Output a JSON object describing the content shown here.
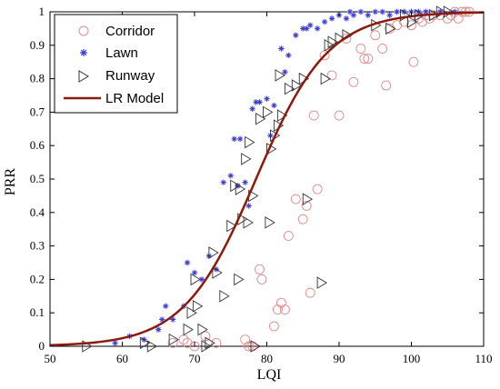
{
  "chart_data": {
    "type": "scatter",
    "xlabel": "LQI",
    "ylabel": "PRR",
    "xlim": [
      50,
      110
    ],
    "ylim": [
      0,
      1
    ],
    "x_ticks": [
      "50",
      "60",
      "70",
      "80",
      "90",
      "100",
      "110"
    ],
    "y_ticks": [
      "0",
      "0.1",
      "0.2",
      "0.3",
      "0.4",
      "0.5",
      "0.6",
      "0.7",
      "0.8",
      "0.9",
      "1"
    ],
    "grid": false,
    "legend_position": "top-left",
    "legend": [
      "Corridor",
      "Lawn",
      "Runway",
      "LR Model"
    ],
    "series": [
      {
        "name": "Corridor",
        "marker": "circle",
        "color": "#e08a8a",
        "points": [
          [
            67,
            0.01
          ],
          [
            68.5,
            0.02
          ],
          [
            69,
            0.01
          ],
          [
            70,
            0.0
          ],
          [
            71.5,
            0.03
          ],
          [
            73,
            0.01
          ],
          [
            77,
            0.02
          ],
          [
            77.5,
            0.0
          ],
          [
            78,
            0.0
          ],
          [
            79,
            0.23
          ],
          [
            79.3,
            0.2
          ],
          [
            81,
            0.06
          ],
          [
            81.5,
            0.11
          ],
          [
            82,
            0.13
          ],
          [
            82.5,
            0.11
          ],
          [
            83,
            0.33
          ],
          [
            84,
            0.44
          ],
          [
            85,
            0.38
          ],
          [
            85.5,
            0.42
          ],
          [
            86,
            0.16
          ],
          [
            86.5,
            0.69
          ],
          [
            87,
            0.47
          ],
          [
            88,
            0.87
          ],
          [
            89,
            0.81
          ],
          [
            90,
            0.69
          ],
          [
            91,
            0.92
          ],
          [
            92,
            0.79
          ],
          [
            93,
            0.89
          ],
          [
            93.5,
            0.86
          ],
          [
            94,
            0.86
          ],
          [
            95,
            0.93
          ],
          [
            96,
            0.89
          ],
          [
            96.5,
            0.78
          ],
          [
            97,
            0.95
          ],
          [
            98,
            0.96
          ],
          [
            99,
            0.97
          ],
          [
            100,
            0.96
          ],
          [
            100.3,
            0.85
          ],
          [
            101,
            0.98
          ],
          [
            101.5,
            0.97
          ],
          [
            102,
            0.99
          ],
          [
            102.5,
            0.98
          ],
          [
            103,
            0.99
          ],
          [
            104,
            0.99
          ],
          [
            105,
            0.98
          ],
          [
            105.5,
            0.99
          ],
          [
            106,
            1.0
          ],
          [
            106.5,
            0.98
          ],
          [
            107,
            1.0
          ],
          [
            107.5,
            1.0
          ],
          [
            108,
            1.0
          ]
        ]
      },
      {
        "name": "Lawn",
        "marker": "star",
        "color": "#3b3bd6",
        "points": [
          [
            59,
            0.01
          ],
          [
            61,
            0.03
          ],
          [
            63,
            0.02
          ],
          [
            65,
            0.05
          ],
          [
            65.5,
            0.08
          ],
          [
            66,
            0.12
          ],
          [
            67,
            0.08
          ],
          [
            68.5,
            0.12
          ],
          [
            69,
            0.25
          ],
          [
            70,
            0.22
          ],
          [
            71,
            0.2
          ],
          [
            72,
            0.27
          ],
          [
            73,
            0.23
          ],
          [
            74,
            0.49
          ],
          [
            75,
            0.51
          ],
          [
            75.5,
            0.62
          ],
          [
            76,
            0.48
          ],
          [
            76.3,
            0.62
          ],
          [
            77,
            0.49
          ],
          [
            77.5,
            0.42
          ],
          [
            78,
            0.71
          ],
          [
            78.5,
            0.73
          ],
          [
            79,
            0.73
          ],
          [
            80,
            0.74
          ],
          [
            80.5,
            0.63
          ],
          [
            81,
            0.72
          ],
          [
            82,
            0.89
          ],
          [
            82.5,
            0.82
          ],
          [
            83,
            0.87
          ],
          [
            84,
            0.93
          ],
          [
            85,
            0.95
          ],
          [
            85.5,
            0.95
          ],
          [
            86,
            0.96
          ],
          [
            87,
            0.95
          ],
          [
            88,
            0.97
          ],
          [
            89,
            0.98
          ],
          [
            90,
            0.99
          ],
          [
            91,
            0.98
          ],
          [
            91.5,
            1.0
          ],
          [
            92,
            0.99
          ],
          [
            93,
            1.0
          ],
          [
            94,
            0.99
          ],
          [
            95,
            1.0
          ],
          [
            96,
            1.0
          ],
          [
            97,
            0.99
          ],
          [
            98,
            1.0
          ],
          [
            99,
            1.0
          ],
          [
            100,
            1.0
          ],
          [
            101,
            1.0
          ],
          [
            102,
            1.0
          ],
          [
            104,
            1.0
          ],
          [
            106,
            1.0
          ]
        ]
      },
      {
        "name": "Runway",
        "marker": "triangle-right",
        "color": "#333333",
        "points": [
          [
            55,
            0.0
          ],
          [
            63,
            0.01
          ],
          [
            64,
            0.0
          ],
          [
            67,
            0.02
          ],
          [
            69,
            0.05
          ],
          [
            69.5,
            0.1
          ],
          [
            70,
            0.2
          ],
          [
            70.3,
            0.12
          ],
          [
            71,
            0.05
          ],
          [
            71.5,
            0.0
          ],
          [
            72,
            0.01
          ],
          [
            72.5,
            0.28
          ],
          [
            73,
            0.22
          ],
          [
            74,
            0.15
          ],
          [
            75,
            0.36
          ],
          [
            75.5,
            0.48
          ],
          [
            76,
            0.2
          ],
          [
            76.2,
            0.47
          ],
          [
            76.5,
            0.38
          ],
          [
            77,
            0.56
          ],
          [
            77.3,
            0.37
          ],
          [
            77.5,
            0.61
          ],
          [
            78,
            0.45
          ],
          [
            78.3,
            0.0
          ],
          [
            79,
            0.68
          ],
          [
            80,
            0.7
          ],
          [
            80.3,
            0.37
          ],
          [
            80.5,
            0.59
          ],
          [
            81,
            0.63
          ],
          [
            81.5,
            0.66
          ],
          [
            81.7,
            0.81
          ],
          [
            82,
            0.69
          ],
          [
            83,
            0.77
          ],
          [
            84,
            0.78
          ],
          [
            85,
            0.8
          ],
          [
            85.5,
            0.44
          ],
          [
            87.5,
            0.19
          ],
          [
            88,
            0.8
          ],
          [
            88.5,
            0.9
          ],
          [
            89,
            0.91
          ],
          [
            90,
            0.92
          ],
          [
            91,
            0.93
          ],
          [
            95,
            0.96
          ],
          [
            97,
            0.95
          ],
          [
            99,
            0.99
          ],
          [
            100,
            0.97
          ],
          [
            101,
            0.99
          ],
          [
            103,
            0.99
          ],
          [
            104,
            1.0
          ],
          [
            105,
            1.0
          ]
        ]
      }
    ],
    "model": {
      "name": "LR Model",
      "color": "#8b1a0e",
      "curve": "logistic",
      "center": 78.5,
      "scale": 5.0
    }
  }
}
